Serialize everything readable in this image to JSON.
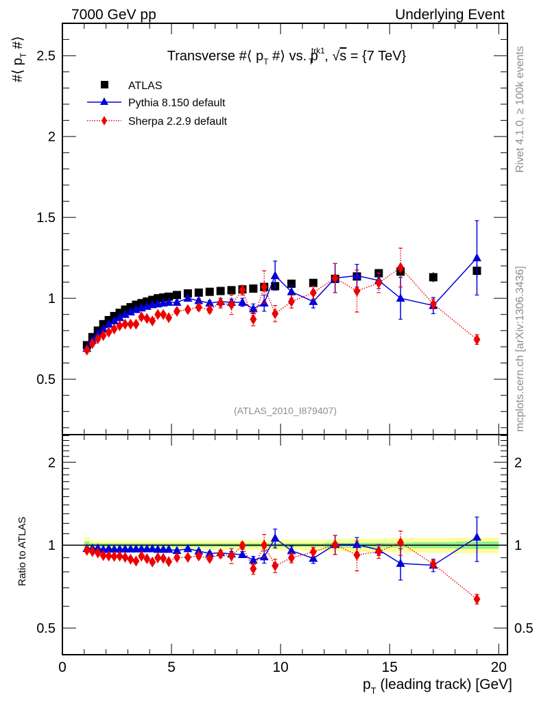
{
  "header": {
    "left": "7000 GeV pp",
    "right": "Underlying Event"
  },
  "side_labels": {
    "rivet": "Rivet 4.1.0, ≥ 100k events",
    "mcplots": "mcplots.cern.ch [arXiv:1306.3436]"
  },
  "chart_data": [
    {
      "type": "scatter",
      "panel": "main",
      "title": "Transverse #⟨ p_T #⟩ vs. p_T^trk1, √s = {7 TeV}",
      "title_parts": {
        "a": "Transverse #⟨ p",
        "a_sub": "T",
        "b": " #⟩ vs. p",
        "b_sup": "trk1",
        "b_sub": "T",
        "c": ", √",
        "c_over": "s",
        "d": " = {7 TeV}"
      },
      "xlabel": "p_T (leading track) [GeV]",
      "ylabel": "#⟨ p_T #⟩",
      "ylabel_parts": {
        "a": "#⟨ p",
        "sub": "T",
        "b": " #⟩"
      },
      "xlim": [
        0,
        20.4
      ],
      "ylim": [
        0.157,
        2.7
      ],
      "xticks": [
        0,
        5,
        10,
        15,
        20
      ],
      "yticks": [
        0.5,
        1,
        1.5,
        2,
        2.5
      ],
      "ytick_labels": [
        "0.5",
        "1",
        "1.5",
        "2",
        "2.5"
      ],
      "watermark": "(ATLAS_2010_I879407)",
      "legend_position": "top-left",
      "x": [
        1.125,
        1.375,
        1.625,
        1.875,
        2.125,
        2.375,
        2.625,
        2.875,
        3.125,
        3.375,
        3.625,
        3.875,
        4.125,
        4.375,
        4.625,
        4.875,
        5.25,
        5.75,
        6.25,
        6.75,
        7.25,
        7.75,
        8.25,
        8.75,
        9.25,
        9.75,
        10.5,
        11.5,
        12.5,
        13.5,
        14.5,
        15.5,
        17,
        19
      ],
      "series": [
        {
          "name": "ATLAS",
          "marker": "square",
          "color": "#000000",
          "values": [
            0.71,
            0.76,
            0.8,
            0.84,
            0.865,
            0.89,
            0.91,
            0.93,
            0.945,
            0.96,
            0.97,
            0.98,
            0.99,
            1.0,
            1.005,
            1.01,
            1.02,
            1.03,
            1.035,
            1.04,
            1.045,
            1.05,
            1.055,
            1.06,
            1.07,
            1.075,
            1.09,
            1.095,
            1.12,
            1.135,
            1.155,
            1.165,
            1.13,
            1.17
          ],
          "errors": [
            0.005,
            0.005,
            0.005,
            0.005,
            0.005,
            0.005,
            0.005,
            0.005,
            0.005,
            0.005,
            0.005,
            0.005,
            0.005,
            0.005,
            0.005,
            0.005,
            0.01,
            0.01,
            0.01,
            0.01,
            0.01,
            0.01,
            0.01,
            0.01,
            0.012,
            0.012,
            0.015,
            0.015,
            0.02,
            0.02,
            0.025,
            0.03,
            0.03,
            0.04
          ]
        },
        {
          "name": "Pythia 8.150 default",
          "marker": "triangle",
          "line": "solid",
          "color": "#0000dd",
          "values": [
            0.69,
            0.74,
            0.78,
            0.81,
            0.84,
            0.86,
            0.88,
            0.9,
            0.915,
            0.93,
            0.94,
            0.95,
            0.96,
            0.965,
            0.97,
            0.975,
            0.975,
            1.0,
            0.985,
            0.97,
            0.98,
            0.975,
            0.975,
            0.935,
            0.97,
            1.14,
            1.04,
            0.98,
            1.125,
            1.14,
            1.11,
            1.0,
            0.955,
            1.25
          ],
          "errors": [
            0.005,
            0.005,
            0.005,
            0.005,
            0.005,
            0.005,
            0.005,
            0.005,
            0.005,
            0.005,
            0.005,
            0.005,
            0.005,
            0.005,
            0.005,
            0.005,
            0.008,
            0.01,
            0.012,
            0.015,
            0.02,
            0.02,
            0.025,
            0.03,
            0.05,
            0.09,
            0.04,
            0.04,
            0.09,
            0.07,
            0.05,
            0.13,
            0.05,
            0.23
          ]
        },
        {
          "name": "Sherpa 2.2.9 default",
          "marker": "diamond",
          "line": "dotted",
          "color": "#ee0000",
          "values": [
            0.68,
            0.72,
            0.75,
            0.77,
            0.79,
            0.81,
            0.83,
            0.84,
            0.84,
            0.84,
            0.885,
            0.875,
            0.86,
            0.9,
            0.9,
            0.88,
            0.92,
            0.93,
            0.945,
            0.93,
            0.97,
            0.96,
            1.05,
            0.87,
            1.07,
            0.905,
            0.98,
            1.035,
            1.125,
            1.045,
            1.095,
            1.19,
            0.965,
            0.745
          ],
          "errors": [
            0.005,
            0.005,
            0.005,
            0.005,
            0.005,
            0.005,
            0.005,
            0.005,
            0.005,
            0.005,
            0.008,
            0.008,
            0.01,
            0.01,
            0.01,
            0.012,
            0.015,
            0.015,
            0.02,
            0.02,
            0.03,
            0.06,
            0.03,
            0.04,
            0.1,
            0.05,
            0.04,
            0.04,
            0.09,
            0.13,
            0.06,
            0.12,
            0.03,
            0.03
          ]
        }
      ]
    },
    {
      "type": "scatter",
      "panel": "ratio",
      "ylabel": "Ratio to ATLAS",
      "yscale": "log",
      "ylim": [
        0.4,
        2.52
      ],
      "yticks": [
        0.5,
        1,
        2
      ],
      "ytick_labels": [
        "0.5",
        "1",
        "2"
      ],
      "xticks": [
        0,
        5,
        10,
        15,
        20
      ],
      "xtick_labels": [
        "0",
        "5",
        "10",
        "15",
        "20"
      ],
      "reference_line": 1,
      "band": {
        "inner_color": "#90ee90",
        "outer_color": "#ffff99",
        "inner_halfwidth": [
          0.03,
          0.015,
          0.015,
          0.015,
          0.015,
          0.015,
          0.015,
          0.015,
          0.015,
          0.015,
          0.015,
          0.015,
          0.015,
          0.015,
          0.015,
          0.015,
          0.015,
          0.015,
          0.015,
          0.015,
          0.015,
          0.015,
          0.015,
          0.015,
          0.015,
          0.015,
          0.015,
          0.015,
          0.02,
          0.02,
          0.02,
          0.02,
          0.025,
          0.03
        ],
        "outer_halfwidth": [
          0.07,
          0.04,
          0.04,
          0.04,
          0.04,
          0.04,
          0.04,
          0.04,
          0.04,
          0.04,
          0.04,
          0.04,
          0.04,
          0.04,
          0.04,
          0.04,
          0.04,
          0.04,
          0.04,
          0.04,
          0.04,
          0.04,
          0.04,
          0.04,
          0.04,
          0.04,
          0.045,
          0.045,
          0.05,
          0.055,
          0.055,
          0.06,
          0.06,
          0.065
        ]
      },
      "bin_edges": [
        1.0,
        1.25,
        1.5,
        1.75,
        2.0,
        2.25,
        2.5,
        2.75,
        3.0,
        3.25,
        3.5,
        3.75,
        4.0,
        4.25,
        4.5,
        4.75,
        5.0,
        5.5,
        6.0,
        6.5,
        7.0,
        7.5,
        8.0,
        8.5,
        9.0,
        9.5,
        10.0,
        11.0,
        12.0,
        13.0,
        14.0,
        15.0,
        16.0,
        18.0,
        20.0
      ]
    }
  ]
}
